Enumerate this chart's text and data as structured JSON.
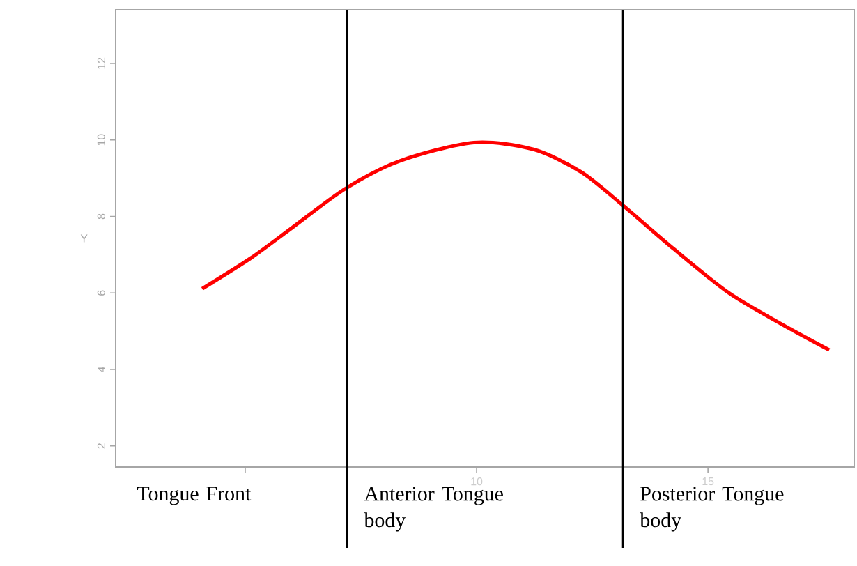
{
  "chart_data": {
    "type": "line",
    "ylabel": "Y",
    "x": [
      4.07,
      5.12,
      6.02,
      7.17,
      8.34,
      9.94,
      11.23,
      12.26,
      13.16,
      14.25,
      15.45,
      16.57,
      17.62
    ],
    "series": [
      {
        "color": "#ff0000",
        "values": [
          6.11,
          6.91,
          7.71,
          8.73,
          9.45,
          9.93,
          9.75,
          9.16,
          8.29,
          7.16,
          6.0,
          5.2,
          4.51
        ]
      }
    ],
    "xlim": [
      2.2,
      18.16
    ],
    "ylim": [
      1.45,
      13.4
    ],
    "xticks": [
      {
        "value": 5,
        "label": null
      },
      10,
      15
    ],
    "yticks": [
      2,
      4,
      6,
      8,
      10,
      12
    ],
    "ref_lines": [
      {
        "axis": "x",
        "value": 7.2,
        "color": "#000000"
      },
      {
        "axis": "x",
        "value": 13.16,
        "color": "#000000"
      }
    ],
    "annotations": [
      "Tongue Front",
      "Anterior Tongue body",
      "Posterior Tongue body"
    ],
    "grid": false,
    "marker": "none",
    "line_style": "solid"
  }
}
